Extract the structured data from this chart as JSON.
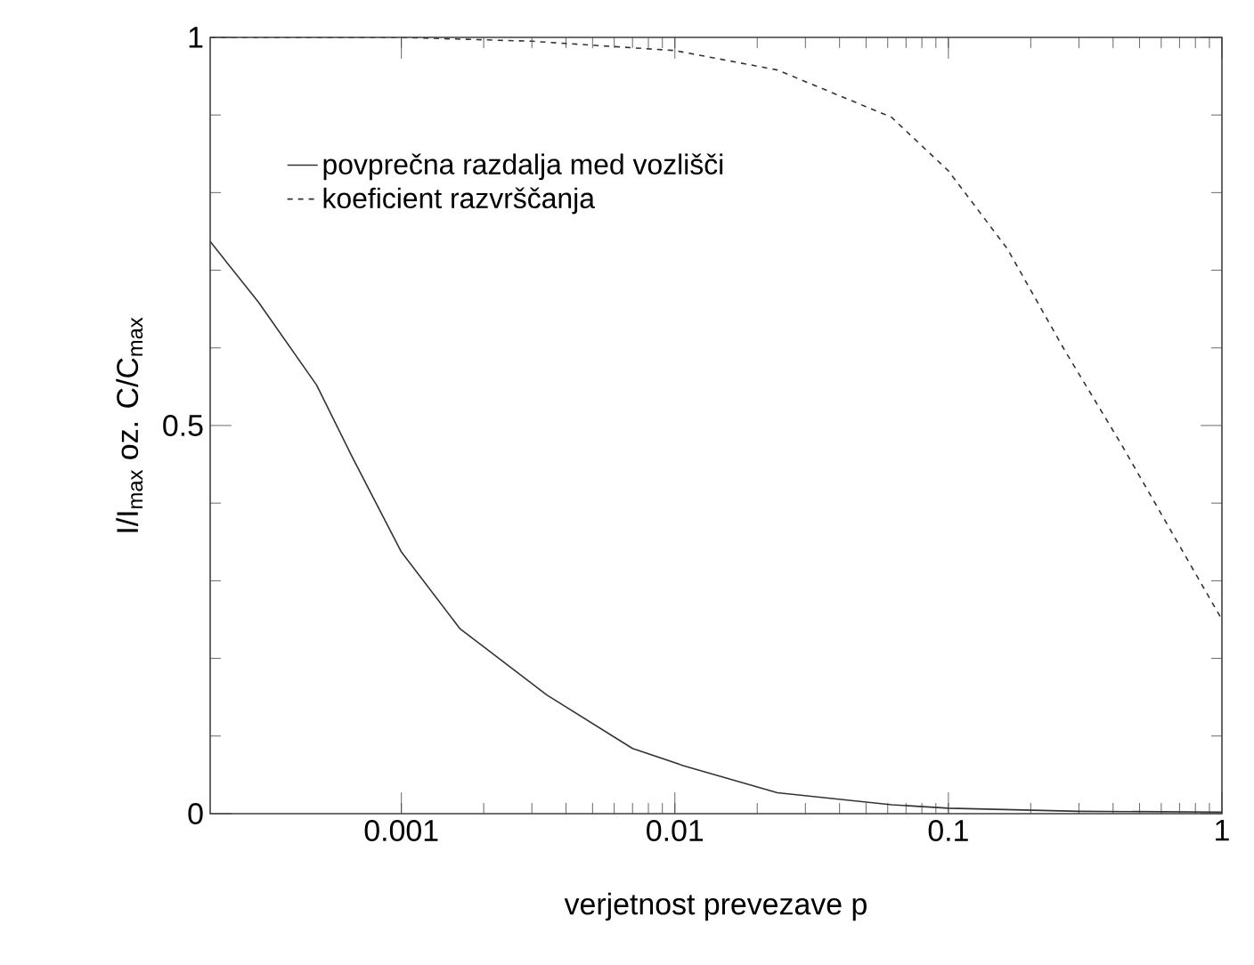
{
  "chart_data": {
    "type": "line",
    "xlabel": "verjetnost prevezave p",
    "ylabel": "I/I$_{max}$ oz. C/C$_{max}$",
    "log": "x",
    "xlim": [
      0.0002,
      1
    ],
    "xticks": [
      0.001,
      0.01,
      0.1,
      1
    ],
    "ylim": [
      0,
      1
    ],
    "yticks": [
      0,
      0.5,
      1
    ],
    "legend": "top left",
    "series": [
      {
        "name": "povprečna razdalja med vozlišči",
        "color": "#333333",
        "line_style": "solid",
        "x": [
          0.0002,
          0.0003,
          0.00049,
          0.00066,
          0.001,
          0.00164,
          0.0034,
          0.007,
          0.0107,
          0.0237,
          0.062,
          0.1,
          0.3,
          1
        ],
        "values": [
          0.737,
          0.659,
          0.552,
          0.46,
          0.337,
          0.238,
          0.153,
          0.084,
          0.062,
          0.027,
          0.0115,
          0.007,
          0.003,
          0.002
        ]
      },
      {
        "name": "koeficient razvrščanja",
        "color": "#333333",
        "line_style": "dashed",
        "x": [
          0.0002,
          0.001,
          0.003,
          0.01,
          0.0237,
          0.062,
          0.1,
          0.164,
          0.265,
          0.43,
          0.7,
          1
        ],
        "values": [
          1.0,
          1.0,
          0.995,
          0.983,
          0.958,
          0.897,
          0.828,
          0.728,
          0.598,
          0.475,
          0.345,
          0.25
        ]
      }
    ]
  }
}
